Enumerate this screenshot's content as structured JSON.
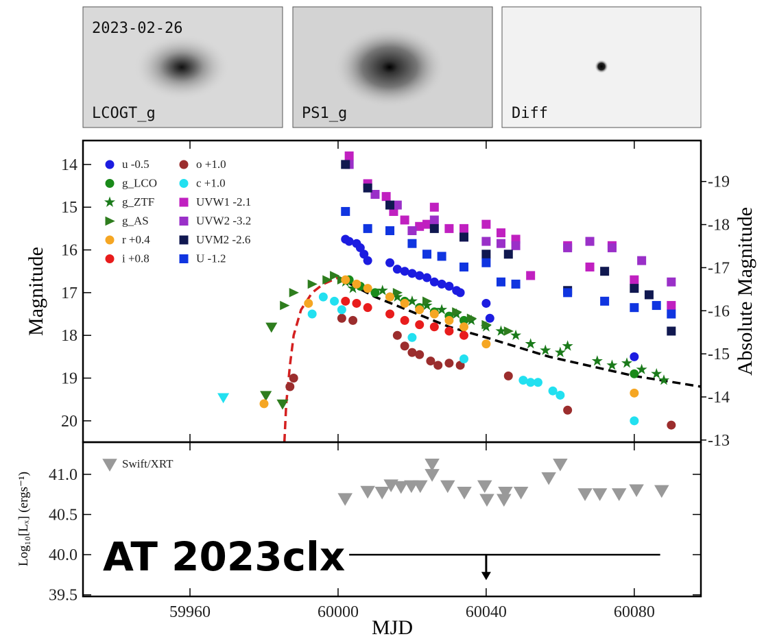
{
  "images": [
    {
      "date": "2023-02-26",
      "label": "LCOGT_g"
    },
    {
      "label": "PS1_g"
    },
    {
      "label": "Diff"
    }
  ],
  "chart_data": [
    {
      "type": "scatter",
      "ylabel": "Magnitude",
      "y2label": "Absolute  Magnitude",
      "xlim": [
        59931.1,
        60098.0
      ],
      "xticks": [
        59960,
        60000,
        60040,
        60080
      ],
      "ylim": [
        13.44,
        20.5
      ],
      "yticks": [
        14,
        15,
        16,
        17,
        18,
        19,
        20
      ],
      "invert_y": true,
      "y2lim": [
        -19.95,
        -12.95
      ],
      "y2ticks": [
        -19,
        -18,
        -17,
        -16,
        -15,
        -14,
        -13
      ],
      "legend": "upper left",
      "series": [
        {
          "name": "u -0.5",
          "color": "#1c1ce0",
          "marker": "circle",
          "x": [
            60002,
            60003,
            60005,
            60006,
            60007,
            60008,
            60014,
            60016,
            60018,
            60020,
            60022,
            60024,
            60026,
            60028,
            60030,
            60032,
            60033,
            60040,
            60041,
            60080
          ],
          "values": [
            15.75,
            15.8,
            15.85,
            15.95,
            16.1,
            16.25,
            16.3,
            16.45,
            16.5,
            16.55,
            16.6,
            16.65,
            16.75,
            16.8,
            16.85,
            16.95,
            17.0,
            17.25,
            17.6,
            18.5
          ]
        },
        {
          "name": "g_LCO",
          "color": "#1a8a1a",
          "marker": "circle",
          "x": [
            60003,
            60006,
            60010,
            60014,
            60018,
            60022,
            60026,
            60030,
            60034,
            60080
          ],
          "values": [
            16.7,
            16.85,
            17.0,
            17.1,
            17.2,
            17.35,
            17.45,
            17.55,
            17.65,
            18.9
          ]
        },
        {
          "name": "g_ZTF",
          "color": "#1a7a1a",
          "marker": "star",
          "x": [
            60002,
            60004,
            60012,
            60016,
            60020,
            60024,
            60028,
            60032,
            60036,
            60040,
            60044,
            60048,
            60052,
            60056,
            60060,
            60062,
            60070,
            60074,
            60078,
            60082,
            60086,
            60088
          ],
          "values": [
            16.75,
            16.9,
            16.95,
            17.1,
            17.2,
            17.3,
            17.4,
            17.5,
            17.65,
            17.8,
            17.9,
            18.0,
            18.2,
            18.35,
            18.4,
            18.25,
            18.6,
            18.7,
            18.65,
            18.8,
            18.9,
            19.05
          ]
        },
        {
          "name": "g_AS",
          "color": "#2e7d1e",
          "marker": "triangle-right",
          "x": [
            59985.5,
            59988,
            59993,
            59997,
            59999,
            60001,
            60016,
            60024,
            60032,
            60036,
            60040,
            60046
          ],
          "values": [
            17.3,
            17.0,
            16.8,
            16.7,
            16.6,
            16.7,
            17.0,
            17.2,
            17.45,
            17.6,
            17.75,
            17.9
          ],
          "upper_limits": {
            "x": [
              59980.5,
              59985,
              59982
            ],
            "values": [
              19.4,
              19.6,
              17.8
            ]
          }
        },
        {
          "name": "r +0.4",
          "color": "#f5a623",
          "marker": "circle",
          "x": [
            59980,
            59992,
            60002,
            60005,
            60008,
            60014,
            60018,
            60022,
            60026,
            60030,
            60034,
            60040,
            60080
          ],
          "values": [
            19.6,
            17.25,
            16.7,
            16.8,
            16.9,
            17.1,
            17.25,
            17.4,
            17.5,
            17.65,
            17.8,
            18.2,
            19.35
          ]
        },
        {
          "name": "i +0.8",
          "color": "#e81c1c",
          "marker": "circle",
          "x": [
            60002,
            60005,
            60008,
            60014,
            60018,
            60022,
            60026,
            60030,
            60034
          ],
          "values": [
            17.2,
            17.25,
            17.35,
            17.5,
            17.65,
            17.75,
            17.8,
            17.9,
            18.0
          ]
        },
        {
          "name": "o +1.0",
          "color": "#9b2d2d",
          "marker": "circle",
          "x": [
            59987,
            59988,
            60001,
            60004,
            60016,
            60018,
            60020,
            60022,
            60025,
            60027,
            60030,
            60033,
            60046,
            60062,
            60090
          ],
          "values": [
            19.2,
            19.0,
            17.6,
            17.65,
            18.0,
            18.25,
            18.4,
            18.45,
            18.6,
            18.7,
            18.65,
            18.7,
            18.95,
            19.75,
            20.1
          ]
        },
        {
          "name": "c +1.0",
          "color": "#22e0f0",
          "marker": "circle",
          "x": [
            59993,
            59996,
            59999,
            60001,
            60020,
            60034,
            60050,
            60052,
            60054,
            60058,
            60060,
            60080
          ],
          "values": [
            17.5,
            17.1,
            17.2,
            17.4,
            18.05,
            18.55,
            19.05,
            19.1,
            19.1,
            19.3,
            19.4,
            20.0
          ],
          "upper_limits": {
            "x": [
              59969
            ],
            "values": [
              19.45
            ]
          }
        },
        {
          "name": "UVW1 -2.1",
          "color": "#c020c0",
          "marker": "square",
          "x": [
            60003,
            60008,
            60013,
            60015,
            60018,
            60022,
            60024,
            60026,
            60030,
            60034,
            60040,
            60044,
            60048,
            60052,
            60062,
            60068,
            60074,
            60080,
            60090
          ],
          "values": [
            13.8,
            14.45,
            14.75,
            15.1,
            15.3,
            15.45,
            15.4,
            15.0,
            15.5,
            15.5,
            15.4,
            15.6,
            15.75,
            16.6,
            15.9,
            16.4,
            15.9,
            16.7,
            17.3
          ]
        },
        {
          "name": "UVW2 -3.2",
          "color": "#9a30c8",
          "marker": "square",
          "x": [
            60003,
            60010,
            60016,
            60020,
            60026,
            60034,
            60040,
            60044,
            60048,
            60062,
            60068,
            60074,
            60082,
            60090
          ],
          "values": [
            14.0,
            14.7,
            14.95,
            15.55,
            15.3,
            15.7,
            15.8,
            15.85,
            15.9,
            15.95,
            15.8,
            15.95,
            16.25,
            16.75
          ]
        },
        {
          "name": "UVM2 -2.6",
          "color": "#101850",
          "marker": "square",
          "x": [
            60002,
            60008,
            60014,
            60026,
            60034,
            60040,
            60046,
            60062,
            60072,
            60080,
            60084,
            60090
          ],
          "values": [
            14.0,
            14.55,
            14.95,
            15.5,
            15.7,
            16.1,
            16.1,
            16.95,
            16.5,
            16.9,
            17.05,
            17.9
          ]
        },
        {
          "name": "U -1.2",
          "color": "#1035e0",
          "marker": "square",
          "x": [
            60002,
            60008,
            60014,
            60020,
            60024,
            60028,
            60034,
            60040,
            60044,
            60048,
            60062,
            60072,
            60080,
            60086,
            60090
          ],
          "values": [
            15.1,
            15.5,
            15.55,
            15.85,
            16.1,
            16.15,
            16.4,
            16.3,
            16.75,
            16.8,
            17.0,
            17.2,
            17.35,
            17.3,
            17.5
          ]
        }
      ],
      "models": [
        {
          "color": "#d42020",
          "x": [
            59985.5,
            59986,
            59987,
            59988,
            59990,
            59993,
            59996,
            60000
          ],
          "values": [
            20.5,
            19.6,
            18.7,
            18.0,
            17.4,
            17.0,
            16.8,
            16.65
          ]
        },
        {
          "color": "#000000",
          "x": [
            60000,
            60010,
            60020,
            60030,
            60040,
            60057,
            60080,
            60098
          ],
          "values": [
            16.65,
            17.1,
            17.45,
            17.8,
            18.05,
            18.5,
            18.95,
            19.2
          ]
        }
      ]
    },
    {
      "type": "scatter",
      "xlabel": "MJD",
      "ylabel": "Log₁₀[Lₓ] (ergs⁻¹)",
      "xlim": [
        59931.1,
        60098.0
      ],
      "xticks": [
        59960,
        60000,
        60040,
        60080
      ],
      "ylim": [
        39.48,
        41.4
      ],
      "yticks": [
        39.5,
        {
          "value": 40.0,
          "label": "40.0"
        },
        40.5,
        {
          "value": 41.0,
          "label": "41.0"
        }
      ],
      "legend": "upper left",
      "series": [
        {
          "name": "Swift/XRT",
          "color": "#999999",
          "marker": "triangle-down",
          "x": [
            60001.9,
            60008.0,
            60011.9,
            60014.3,
            60017.0,
            60019.8,
            60022.2,
            60025.4,
            60025.4,
            60029.6,
            60034.1,
            60039.6,
            60040.2,
            60044.8,
            60045.2,
            60049.4,
            60056.9,
            60060.0,
            60066.7,
            60070.7,
            60075.9,
            60080.6,
            60087.4
          ],
          "values": [
            40.7,
            40.79,
            40.78,
            40.87,
            40.85,
            40.86,
            40.86,
            41.0,
            41.13,
            40.86,
            40.78,
            40.86,
            40.69,
            40.69,
            40.78,
            40.78,
            40.96,
            41.13,
            40.76,
            40.76,
            40.76,
            40.81,
            40.8
          ]
        }
      ],
      "annotation": "AT 2023clx",
      "upper_limit": {
        "value": 40.0,
        "x": [
          60003,
          60087
        ],
        "arrow_x": 60040,
        "arrow_to": 39.7
      }
    }
  ]
}
